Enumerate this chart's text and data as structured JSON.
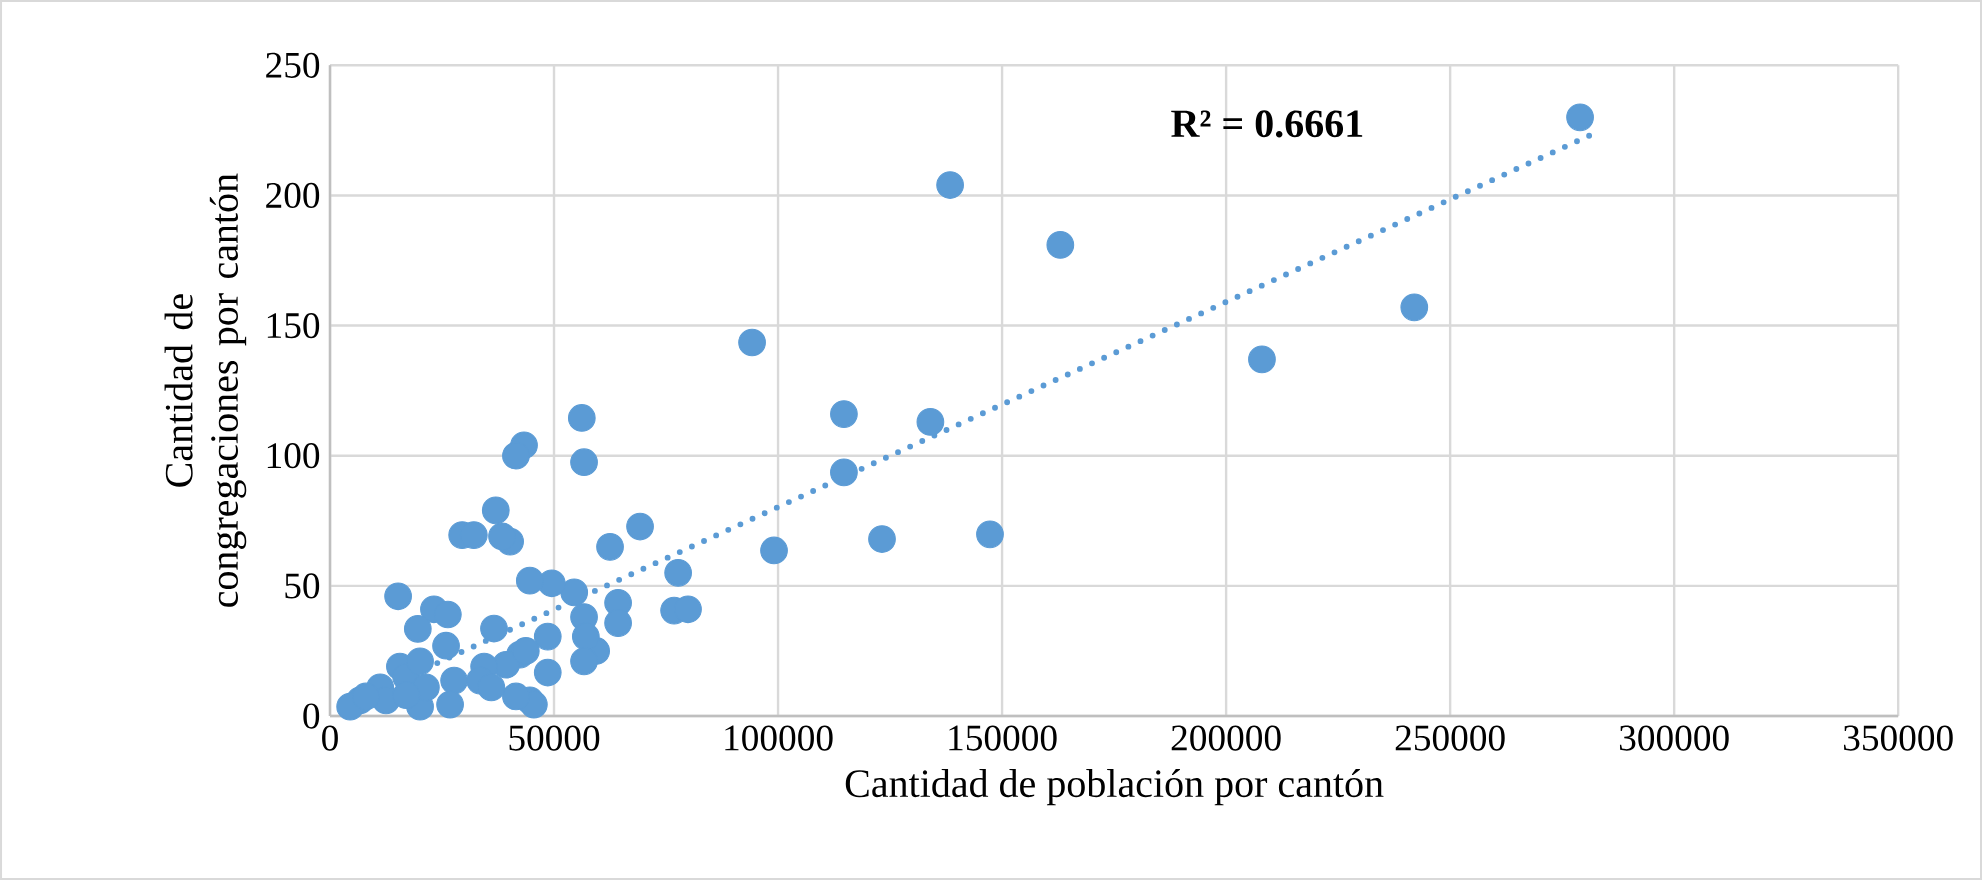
{
  "chart_data": {
    "type": "scatter",
    "xlabel": "Cantidad de población por cantón",
    "ylabel": "Cantidad de congregaciones por cantón",
    "xlim": [
      0,
      350000
    ],
    "xticks": [
      0,
      50000,
      100000,
      150000,
      200000,
      250000,
      300000,
      350000
    ],
    "ylim": [
      0,
      250
    ],
    "yticks": [
      0,
      50,
      100,
      150,
      200,
      250
    ],
    "grid": true,
    "marker": "circle",
    "annotations": [
      "R² = 0.6661"
    ],
    "series": [
      {
        "type": "scatter",
        "color": "#5b9bd5",
        "x": [
          279000,
          242000,
          208000,
          163000,
          138400,
          94200,
          114700,
          134000,
          114700,
          147300,
          123200,
          99100,
          69200,
          62500,
          77700,
          76800,
          79900,
          64300,
          64300,
          59400,
          56700,
          57100,
          56700,
          56700,
          56200,
          54500,
          49500,
          44600,
          48600,
          48600,
          44600,
          43300,
          41500,
          40200,
          38400,
          37000,
          29500,
          32100,
          15200,
          23200,
          26300,
          19600,
          25900,
          36600,
          42400,
          39300,
          34400,
          33500,
          45500,
          41500,
          27700,
          26800,
          20100,
          15600,
          17000,
          11200,
          6700,
          4500,
          20100,
          21400,
          12500,
          17000,
          8000,
          43700,
          36000
        ],
        "values": [
          230,
          157,
          137,
          181,
          204,
          143.5,
          116,
          113,
          93.6,
          69.8,
          68,
          63.6,
          72.8,
          65,
          55,
          40.5,
          41,
          43.5,
          35.7,
          25,
          38,
          30.5,
          21,
          97.5,
          114.5,
          47.5,
          51,
          52,
          30.5,
          16.7,
          6,
          104,
          100,
          67,
          69,
          79,
          69.5,
          69.5,
          46,
          41,
          39,
          33.5,
          27,
          33.6,
          23.6,
          19.7,
          19,
          13.6,
          4.4,
          7.5,
          13.6,
          4.4,
          3.6,
          19,
          15,
          11,
          6,
          3.6,
          21,
          11,
          6,
          8,
          7.5,
          25,
          11
        ]
      },
      {
        "type": "line",
        "color": "#5b9bd5",
        "line_style": "dotted",
        "marker": "none",
        "x": [
          5000,
          282000
        ],
        "values": [
          5.4,
          223.7
        ]
      }
    ]
  }
}
